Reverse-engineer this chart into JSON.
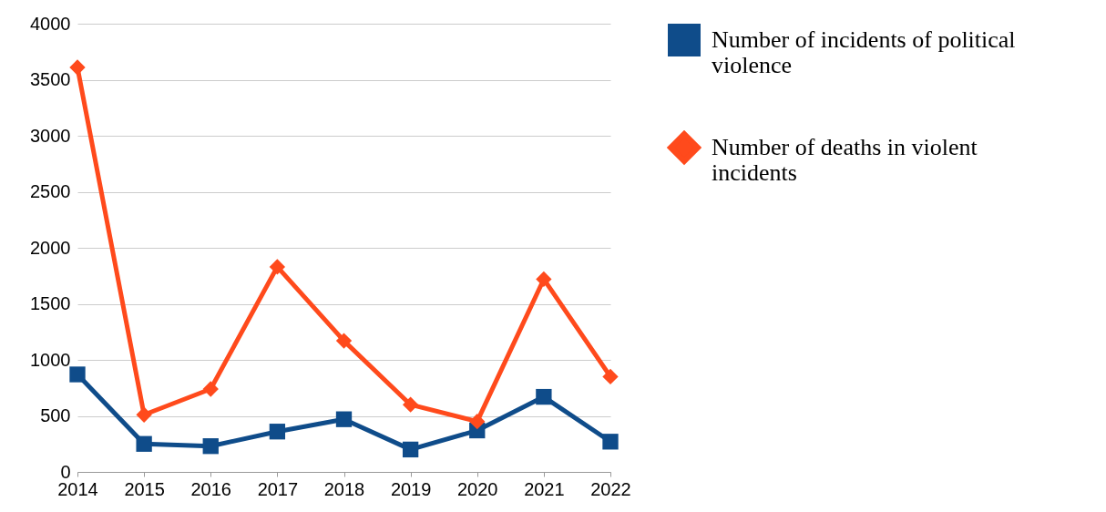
{
  "chart_data": {
    "type": "line",
    "categories": [
      "2014",
      "2015",
      "2016",
      "2017",
      "2018",
      "2019",
      "2020",
      "2021",
      "2022"
    ],
    "series": [
      {
        "name": "Number of incidents of political violence",
        "color": "#0f4c8a",
        "marker": "square",
        "values": [
          870,
          250,
          230,
          360,
          470,
          200,
          370,
          670,
          270
        ]
      },
      {
        "name": "Number of deaths in violent incidents",
        "color": "#ff4a1c",
        "marker": "diamond",
        "values": [
          3610,
          510,
          740,
          1830,
          1170,
          600,
          450,
          1720,
          850
        ]
      }
    ],
    "ylim": [
      0,
      4000
    ],
    "yticks": [
      0,
      500,
      1000,
      1500,
      2000,
      2500,
      3000,
      3500,
      4000
    ],
    "grid": "y",
    "legend": "right",
    "line_style": "solid"
  }
}
